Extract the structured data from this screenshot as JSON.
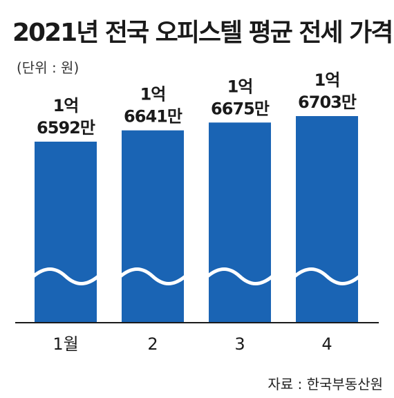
{
  "header": {
    "title": "2021년 전국 오피스텔 평균 전세 가격",
    "unit": "(단위 : 원)"
  },
  "footer": {
    "source": "자료 : 한국부동산원"
  },
  "colors": {
    "bar": "#1a64b4",
    "wave": "#ffffff",
    "axis": "#1a1a1a"
  },
  "chart_data": {
    "type": "bar",
    "title": "2021년 전국 오피스텔 평균 전세 가격",
    "unit": "원",
    "categories": [
      "1월",
      "2",
      "3",
      "4"
    ],
    "values": [
      165920000,
      166410000,
      166750000,
      167030000
    ],
    "value_labels": [
      [
        "1억",
        "6592만"
      ],
      [
        "1억",
        "6641만"
      ],
      [
        "1억",
        "6675만"
      ],
      [
        "1억",
        "6703만"
      ]
    ],
    "axis_break": true,
    "grid": false
  }
}
